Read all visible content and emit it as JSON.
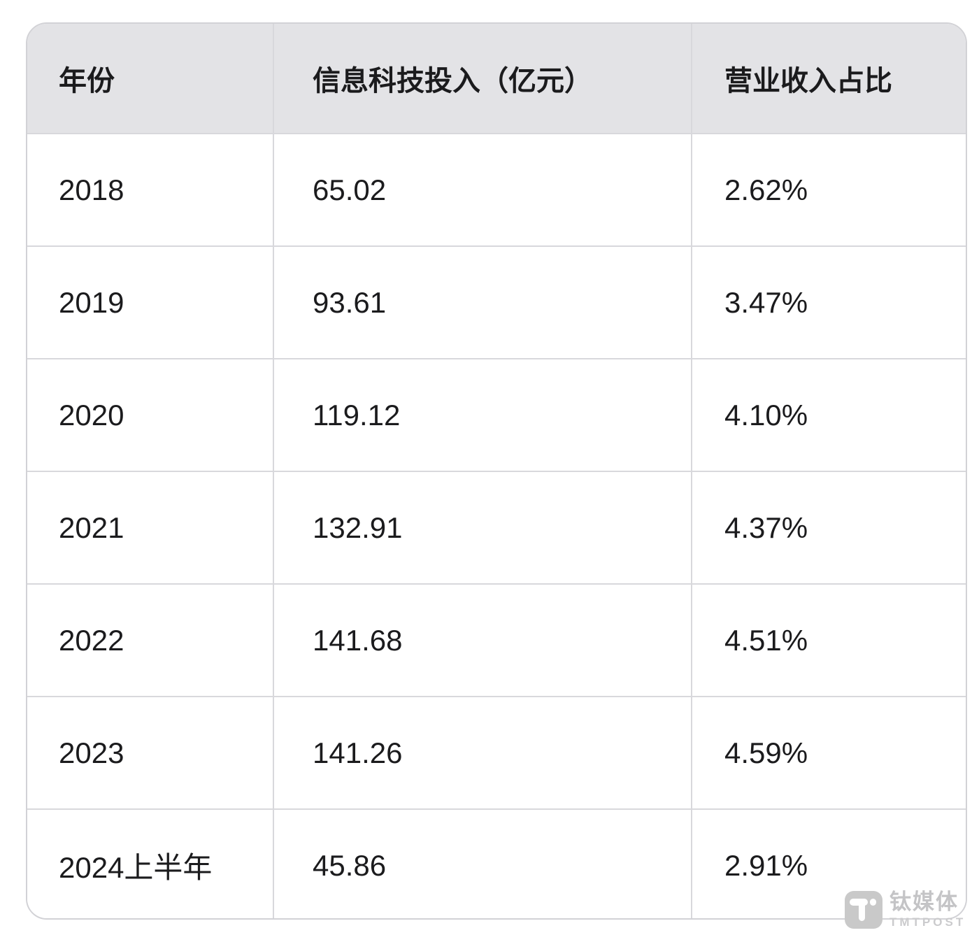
{
  "table": {
    "columns": [
      {
        "key": "year",
        "label": "年份"
      },
      {
        "key": "investment",
        "label": "信息科技投入（亿元）"
      },
      {
        "key": "share",
        "label": "营业收入占比"
      }
    ],
    "rows": [
      {
        "year": "2018",
        "investment": "65.02",
        "share": "2.62%"
      },
      {
        "year": "2019",
        "investment": "93.61",
        "share": "3.47%"
      },
      {
        "year": "2020",
        "investment": "119.12",
        "share": "4.10%"
      },
      {
        "year": "2021",
        "investment": "132.91",
        "share": "4.37%"
      },
      {
        "year": "2022",
        "investment": "141.68",
        "share": "4.51%"
      },
      {
        "year": "2023",
        "investment": "141.26",
        "share": "4.59%"
      },
      {
        "year": "2024上半年",
        "investment": "45.86",
        "share": "2.91%"
      }
    ]
  },
  "chart_data": {
    "type": "table",
    "title": "",
    "categories": [
      "2018",
      "2019",
      "2020",
      "2021",
      "2022",
      "2023",
      "2024上半年"
    ],
    "series": [
      {
        "name": "信息科技投入（亿元）",
        "values": [
          65.02,
          93.61,
          119.12,
          132.91,
          141.68,
          141.26,
          45.86
        ]
      },
      {
        "name": "营业收入占比",
        "values": [
          "2.62%",
          "3.47%",
          "4.10%",
          "4.37%",
          "4.51%",
          "4.59%",
          "2.91%"
        ]
      }
    ]
  },
  "watermark": {
    "logo_letter": "T",
    "brand_cn": "钛媒体",
    "brand_en": "TMTPOST"
  },
  "colors": {
    "header_bg": "#e3e3e6",
    "border": "#d8d8dc",
    "text": "#1b1b1d",
    "watermark_gray": "#c9c9c9"
  }
}
